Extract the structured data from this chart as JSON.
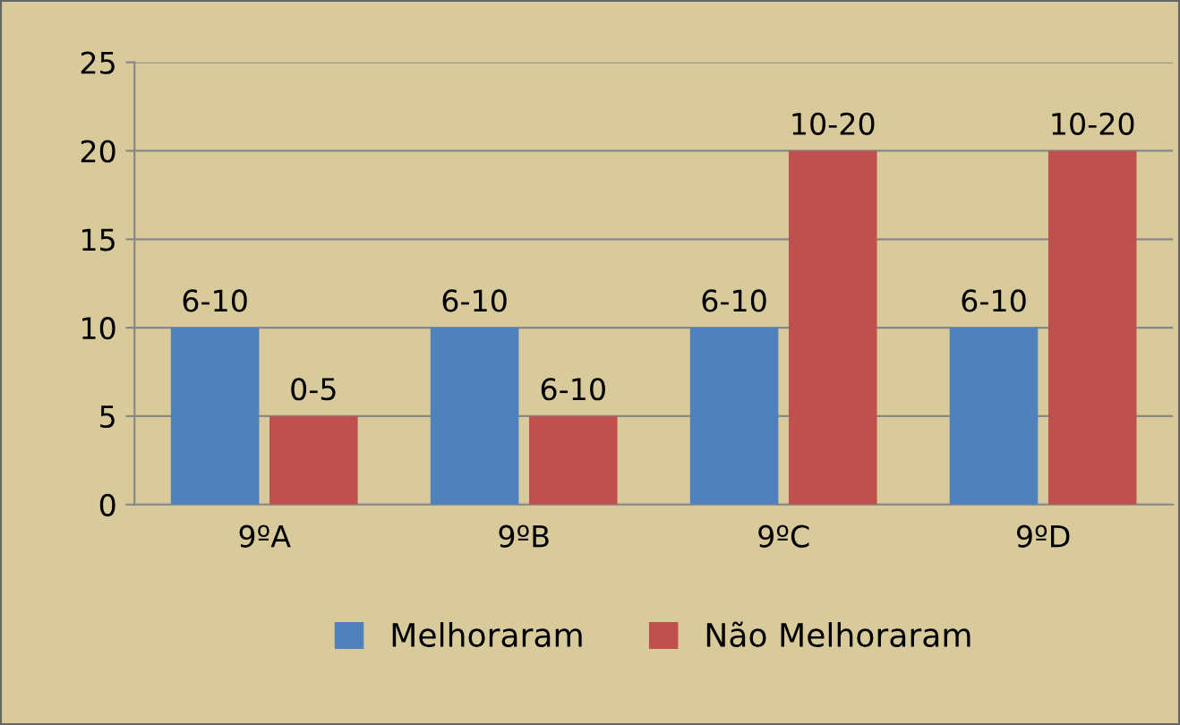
{
  "chart_data": {
    "type": "bar",
    "categories": [
      "9ºA",
      "9ºB",
      "9ºC",
      "9ºD"
    ],
    "series": [
      {
        "name": "Melhoraram",
        "color": "#4f81bd",
        "values": [
          10,
          10,
          10,
          10
        ],
        "value_labels": [
          "6-10",
          "6-10",
          "6-10",
          "6-10"
        ]
      },
      {
        "name": "Não Melhoraram",
        "color": "#c0504d",
        "values": [
          5,
          5,
          20,
          20
        ],
        "value_labels": [
          "0-5",
          "6-10",
          "10-20",
          "10-20"
        ]
      }
    ],
    "ylim": [
      0,
      25
    ],
    "yticks": [
      0,
      5,
      10,
      15,
      20,
      25
    ],
    "grid": "y",
    "legend": "bottom"
  }
}
